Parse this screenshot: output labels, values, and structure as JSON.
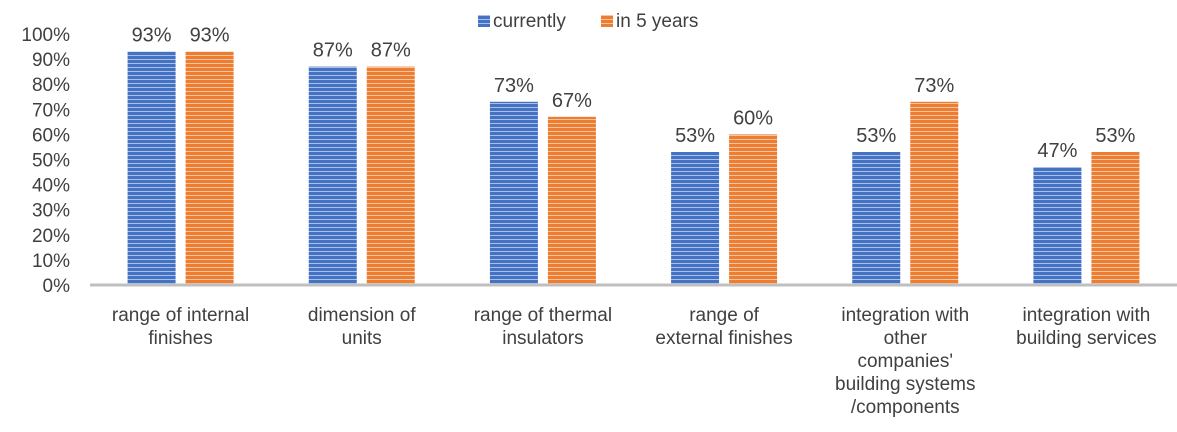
{
  "chart_data": {
    "type": "bar",
    "categories": [
      [
        "range of internal",
        "finishes"
      ],
      [
        "dimension of",
        "units"
      ],
      [
        "range of thermal",
        "insulators"
      ],
      [
        "range of",
        "external finishes"
      ],
      [
        "integration with",
        "other",
        "companies'",
        "building systems",
        "/components"
      ],
      [
        "integration with",
        "building services"
      ]
    ],
    "series": [
      {
        "name": "currently",
        "values": [
          93,
          87,
          73,
          53,
          53,
          47
        ],
        "color": "#4472C4"
      },
      {
        "name": "in 5 years",
        "values": [
          93,
          87,
          67,
          60,
          73,
          53
        ],
        "color": "#ED7D31"
      }
    ],
    "ylim": [
      0,
      100
    ],
    "yticks": [
      "0%",
      "10%",
      "20%",
      "30%",
      "40%",
      "50%",
      "60%",
      "70%",
      "80%",
      "90%",
      "100%"
    ],
    "value_suffix": "%",
    "legend": "top",
    "grid": false
  }
}
